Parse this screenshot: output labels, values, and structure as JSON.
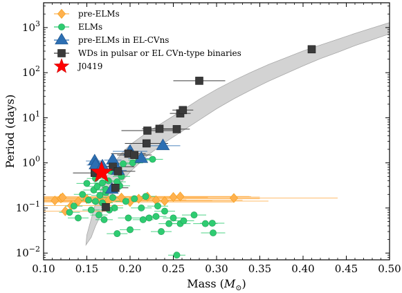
{
  "chart_data": {
    "type": "scatter",
    "xlabel": "Mass (",
    "xlabel_symbol": "M",
    "xlabel_sub": "⊙",
    "xlabel_close": ")",
    "ylabel": "Period (days)",
    "xlim": [
      0.1,
      0.5
    ],
    "ylim_log10": [
      -2.15,
      3.55
    ],
    "log_y": true,
    "x_ticks": [
      "0.10",
      "0.15",
      "0.20",
      "0.25",
      "0.30",
      "0.35",
      "0.40",
      "0.45",
      "0.50"
    ],
    "x_tick_values": [
      0.1,
      0.15,
      0.2,
      0.25,
      0.3,
      0.35,
      0.4,
      0.45,
      0.5
    ],
    "y_tick_exponents": [
      -2,
      -1,
      0,
      1,
      2,
      3
    ],
    "y_tick_base": "10",
    "legend_position": "top-left",
    "band": {
      "color": "#d3d3d3",
      "upper": [
        [
          0.149,
          -1.82
        ],
        [
          0.15,
          -1.6
        ],
        [
          0.16,
          -0.9
        ],
        [
          0.17,
          -0.42
        ],
        [
          0.18,
          -0.05
        ],
        [
          0.19,
          0.21
        ],
        [
          0.2,
          0.4
        ],
        [
          0.22,
          0.68
        ],
        [
          0.24,
          0.92
        ],
        [
          0.26,
          1.16
        ],
        [
          0.28,
          1.41
        ],
        [
          0.3,
          1.63
        ],
        [
          0.32,
          1.83
        ],
        [
          0.34,
          2.01
        ],
        [
          0.36,
          2.18
        ],
        [
          0.38,
          2.33
        ],
        [
          0.4,
          2.48
        ],
        [
          0.42,
          2.61
        ],
        [
          0.44,
          2.74
        ],
        [
          0.46,
          2.87
        ],
        [
          0.48,
          2.99
        ],
        [
          0.5,
          3.11
        ]
      ],
      "lower": [
        [
          0.149,
          -1.82
        ],
        [
          0.155,
          -1.65
        ],
        [
          0.16,
          -1.4
        ],
        [
          0.17,
          -1.0
        ],
        [
          0.18,
          -0.68
        ],
        [
          0.19,
          -0.43
        ],
        [
          0.2,
          -0.2
        ],
        [
          0.22,
          0.16
        ],
        [
          0.24,
          0.45
        ],
        [
          0.26,
          0.7
        ],
        [
          0.28,
          0.95
        ],
        [
          0.3,
          1.2
        ],
        [
          0.32,
          1.42
        ],
        [
          0.34,
          1.62
        ],
        [
          0.36,
          1.81
        ],
        [
          0.38,
          1.98
        ],
        [
          0.4,
          2.15
        ],
        [
          0.42,
          2.31
        ],
        [
          0.44,
          2.45
        ],
        [
          0.46,
          2.6
        ],
        [
          0.48,
          2.73
        ],
        [
          0.5,
          2.86
        ]
      ]
    },
    "series": [
      {
        "name": "pre-ELMs",
        "marker": "diamond",
        "color": "#ffb14e",
        "edge": "#f39c12",
        "points": [
          {
            "x": 0.113,
            "p": 0.146,
            "xerr": 0.06
          },
          {
            "x": 0.12,
            "p": 0.163,
            "xerr": 0.07
          },
          {
            "x": 0.122,
            "p": 0.172,
            "xerr": 0.08
          },
          {
            "x": 0.125,
            "p": 0.085,
            "xerr": 0.05
          },
          {
            "x": 0.132,
            "p": 0.113,
            "xerr": 0.06
          },
          {
            "x": 0.14,
            "p": 0.14,
            "xerr": 0.07
          },
          {
            "x": 0.15,
            "p": 0.158,
            "xerr": 0.08
          },
          {
            "x": 0.165,
            "p": 0.151,
            "xerr": 0.1
          },
          {
            "x": 0.175,
            "p": 0.145,
            "xerr": 0.12
          },
          {
            "x": 0.19,
            "p": 0.17,
            "xerr": 0.1
          },
          {
            "x": 0.2,
            "p": 0.135,
            "xerr": 0.12
          },
          {
            "x": 0.21,
            "p": 0.16,
            "xerr": 0.14
          },
          {
            "x": 0.22,
            "p": 0.178,
            "xerr": 0.12
          },
          {
            "x": 0.23,
            "p": 0.148,
            "xerr": 0.1
          },
          {
            "x": 0.24,
            "p": 0.142,
            "xerr": 0.12
          },
          {
            "x": 0.25,
            "p": 0.175,
            "xerr": 0.1
          },
          {
            "x": 0.258,
            "p": 0.18,
            "xerr": 0.08
          },
          {
            "x": 0.32,
            "p": 0.166,
            "xerr": 0.12
          }
        ]
      },
      {
        "name": "ELMs",
        "marker": "circle",
        "color": "#2ecc71",
        "edge": "#1f9d55",
        "points": [
          {
            "x": 0.13,
            "p": 0.08,
            "xerr": 0.012
          },
          {
            "x": 0.135,
            "p": 0.11,
            "xerr": 0.01
          },
          {
            "x": 0.14,
            "p": 0.06,
            "xerr": 0.012
          },
          {
            "x": 0.145,
            "p": 0.2,
            "xerr": 0.01
          },
          {
            "x": 0.15,
            "p": 0.35,
            "xerr": 0.012
          },
          {
            "x": 0.152,
            "p": 0.15,
            "xerr": 0.01
          },
          {
            "x": 0.155,
            "p": 0.09,
            "xerr": 0.01
          },
          {
            "x": 0.158,
            "p": 0.25,
            "xerr": 0.012
          },
          {
            "x": 0.16,
            "p": 0.45,
            "xerr": 0.01
          },
          {
            "x": 0.162,
            "p": 0.3,
            "xerr": 0.012
          },
          {
            "x": 0.165,
            "p": 0.19,
            "xerr": 0.01
          },
          {
            "x": 0.168,
            "p": 0.13,
            "xerr": 0.012
          },
          {
            "x": 0.17,
            "p": 0.055,
            "xerr": 0.01
          },
          {
            "x": 0.172,
            "p": 0.22,
            "xerr": 0.012
          },
          {
            "x": 0.175,
            "p": 0.4,
            "xerr": 0.01
          },
          {
            "x": 0.178,
            "p": 0.65,
            "xerr": 0.012
          },
          {
            "x": 0.18,
            "p": 0.17,
            "xerr": 0.012
          },
          {
            "x": 0.182,
            "p": 0.1,
            "xerr": 0.01
          },
          {
            "x": 0.185,
            "p": 0.027,
            "xerr": 0.012
          },
          {
            "x": 0.188,
            "p": 0.31,
            "xerr": 0.012
          },
          {
            "x": 0.19,
            "p": 0.5,
            "xerr": 0.01
          },
          {
            "x": 0.192,
            "p": 0.95,
            "xerr": 0.012
          },
          {
            "x": 0.195,
            "p": 0.14,
            "xerr": 0.012
          },
          {
            "x": 0.198,
            "p": 0.06,
            "xerr": 0.012
          },
          {
            "x": 0.2,
            "p": 0.033,
            "xerr": 0.012
          },
          {
            "x": 0.203,
            "p": 1.0,
            "xerr": 0.012
          },
          {
            "x": 0.205,
            "p": 0.16,
            "xerr": 0.012
          },
          {
            "x": 0.21,
            "p": 1.15,
            "xerr": 0.012
          },
          {
            "x": 0.213,
            "p": 0.1,
            "xerr": 0.012
          },
          {
            "x": 0.218,
            "p": 0.18,
            "xerr": 0.012
          },
          {
            "x": 0.222,
            "p": 0.06,
            "xerr": 0.012
          },
          {
            "x": 0.226,
            "p": 1.2,
            "xerr": 0.012
          },
          {
            "x": 0.232,
            "p": 0.11,
            "xerr": 0.012
          },
          {
            "x": 0.236,
            "p": 0.03,
            "xerr": 0.012
          },
          {
            "x": 0.24,
            "p": 0.085,
            "xerr": 0.012
          },
          {
            "x": 0.245,
            "p": 0.045,
            "xerr": 0.012
          },
          {
            "x": 0.25,
            "p": 0.06,
            "xerr": 0.012
          },
          {
            "x": 0.254,
            "p": 0.009,
            "xerr": 0.01
          },
          {
            "x": 0.258,
            "p": 0.045,
            "xerr": 0.012
          },
          {
            "x": 0.262,
            "p": 0.052,
            "xerr": 0.012
          },
          {
            "x": 0.274,
            "p": 0.07,
            "xerr": 0.014
          },
          {
            "x": 0.287,
            "p": 0.045,
            "xerr": 0.014
          },
          {
            "x": 0.296,
            "p": 0.028,
            "xerr": 0.014
          },
          {
            "x": 0.295,
            "p": 0.046,
            "xerr": 0.014
          },
          {
            "x": 0.176,
            "p": 0.09,
            "xerr": 0.01
          },
          {
            "x": 0.164,
            "p": 0.07,
            "xerr": 0.01
          },
          {
            "x": 0.168,
            "p": 0.36,
            "xerr": 0.01
          },
          {
            "x": 0.185,
            "p": 0.38,
            "xerr": 0.01
          },
          {
            "x": 0.16,
            "p": 0.14,
            "xerr": 0.01
          },
          {
            "x": 0.172,
            "p": 0.26,
            "xerr": 0.01
          },
          {
            "x": 0.215,
            "p": 0.055,
            "xerr": 0.012
          },
          {
            "x": 0.23,
            "p": 0.065,
            "xerr": 0.012
          }
        ]
      },
      {
        "name": "pre-ELMs in EL-CVns",
        "marker": "triangle",
        "color": "#2c6fb3",
        "edge": "#1d4f85",
        "points": [
          {
            "x": 0.159,
            "p": 1.1,
            "xerr": 0.01
          },
          {
            "x": 0.16,
            "p": 0.9,
            "xerr": 0.01
          },
          {
            "x": 0.168,
            "p": 0.85,
            "xerr": 0.01
          },
          {
            "x": 0.18,
            "p": 1.15,
            "xerr": 0.01
          },
          {
            "x": 0.186,
            "p": 0.68,
            "xerr": 0.01
          },
          {
            "x": 0.2,
            "p": 1.8,
            "xerr": 0.02
          },
          {
            "x": 0.213,
            "p": 1.25,
            "xerr": 0.015
          },
          {
            "x": 0.238,
            "p": 2.4,
            "xerr": 0.02
          },
          {
            "x": 0.179,
            "p": 0.26,
            "xerr": 0.01
          }
        ]
      },
      {
        "name": "WDs in pulsar or EL CVn-type binaries",
        "marker": "square",
        "color": "#3a3a3a",
        "edge": "#222222",
        "points": [
          {
            "x": 0.159,
            "p": 0.6,
            "xerr": 0.025
          },
          {
            "x": 0.172,
            "p": 0.104,
            "xerr": 0.005
          },
          {
            "x": 0.18,
            "p": 0.82,
            "xerr": 0.025
          },
          {
            "x": 0.183,
            "p": 0.28,
            "xerr": 0.015
          },
          {
            "x": 0.186,
            "p": 0.65,
            "xerr": 0.02
          },
          {
            "x": 0.198,
            "p": 1.6,
            "xerr": 0.02
          },
          {
            "x": 0.205,
            "p": 1.5,
            "xerr": 0.02
          },
          {
            "x": 0.219,
            "p": 2.7,
            "xerr": 0.025
          },
          {
            "x": 0.22,
            "p": 5.2,
            "xerr": 0.03
          },
          {
            "x": 0.234,
            "p": 5.7,
            "xerr": 0.02
          },
          {
            "x": 0.254,
            "p": 5.6,
            "xerr": 0.015
          },
          {
            "x": 0.258,
            "p": 12.5,
            "xerr": 0.012
          },
          {
            "x": 0.261,
            "p": 14.8,
            "xerr": 0.012
          },
          {
            "x": 0.28,
            "p": 66.0,
            "xerr": 0.03
          },
          {
            "x": 0.41,
            "p": 330.0,
            "xerr": 0.004
          }
        ]
      },
      {
        "name": "J0419",
        "marker": "star",
        "color": "#ff0000",
        "edge": "#cc0000",
        "points": [
          {
            "x": 0.167,
            "p": 0.607,
            "xerr": 0.008
          }
        ]
      }
    ]
  }
}
